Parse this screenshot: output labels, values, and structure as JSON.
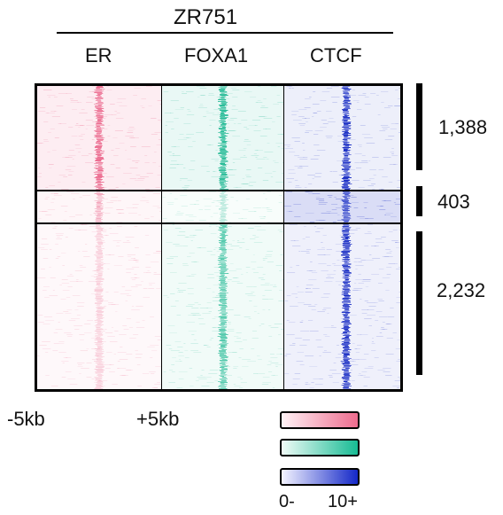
{
  "title": "ZR751",
  "columns": [
    "ER",
    "FOXA1",
    "CTCF"
  ],
  "clusters": [
    "1,388",
    "403",
    "2,232"
  ],
  "x_axis": {
    "left": "-5kb",
    "right": "+5kb"
  },
  "scale": {
    "min": "0-",
    "max": "10+"
  },
  "colors": {
    "er": "#e8527c",
    "foxa1": "#10b48c",
    "ctcf": "#1a2ec4"
  },
  "cluster_sizes": [
    1388,
    403,
    2232
  ]
}
